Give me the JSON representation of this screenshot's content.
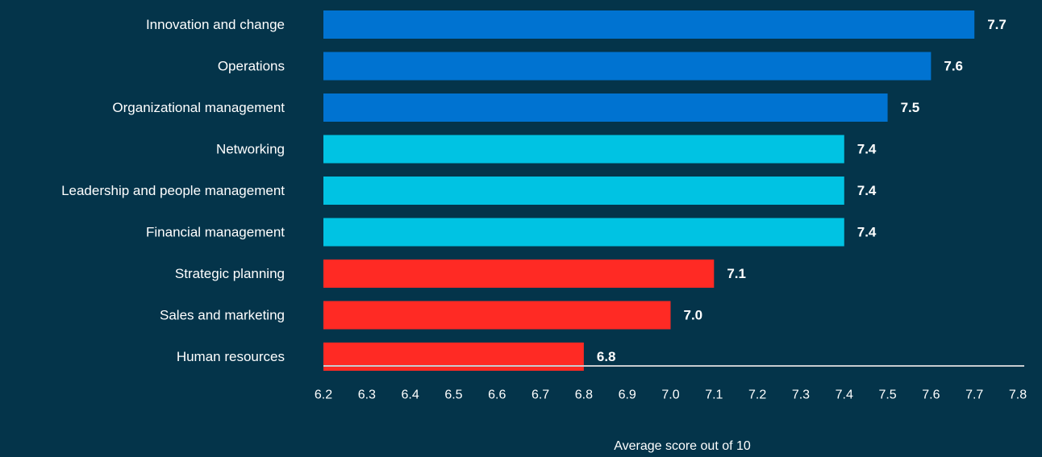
{
  "chart_data": {
    "type": "bar",
    "orientation": "horizontal",
    "categories": [
      "Innovation and change",
      "Operations",
      "Organizational management",
      "Networking",
      "Leadership and people management",
      "Financial management",
      "Strategic planning",
      "Sales and marketing",
      "Human resources"
    ],
    "values": [
      7.7,
      7.6,
      7.5,
      7.4,
      7.4,
      7.4,
      7.1,
      7.0,
      6.8
    ],
    "value_labels": [
      "7.7",
      "7.6",
      "7.5",
      "7.4",
      "7.4",
      "7.4",
      "7.1",
      "7.0",
      "6.8"
    ],
    "bar_colors": [
      "#0073d1",
      "#0073d1",
      "#0073d1",
      "#00c3e3",
      "#00c3e3",
      "#00c3e3",
      "#ff2a24",
      "#ff2a24",
      "#ff2a24"
    ],
    "xlim": [
      6.2,
      7.8
    ],
    "xticks": [
      "6.2",
      "6.3",
      "6.4",
      "6.5",
      "6.6",
      "6.7",
      "6.8",
      "6.9",
      "7.0",
      "7.1",
      "7.2",
      "7.3",
      "7.4",
      "7.5",
      "7.6",
      "7.7",
      "7.8"
    ],
    "xlabel": "Average score out of 10",
    "ylabel": "",
    "title": "",
    "grid": false,
    "legend": "none"
  },
  "colors": {
    "background": "#04344a",
    "axis_line": "#c8ccd0",
    "text": "#ffffff"
  }
}
